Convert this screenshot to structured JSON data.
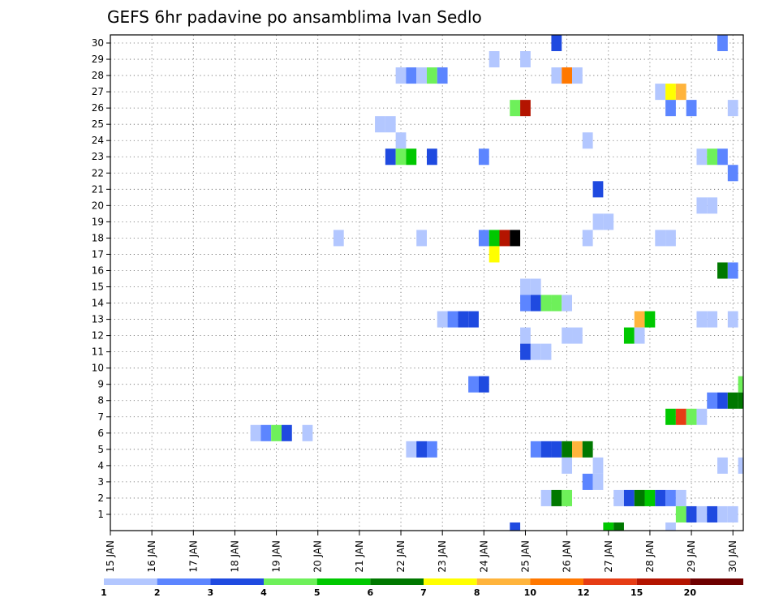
{
  "chart_data": {
    "type": "heatmap",
    "title": "GEFS 6hr padavine po ansamblima Ivan Sedlo",
    "xlabel": "",
    "ylabel": "",
    "x_unit": "6hr steps from 15 JAN 00Z",
    "x_range": [
      0,
      61
    ],
    "y_range": [
      0,
      30
    ],
    "x_ticks": [
      "15 JAN",
      "16 JAN",
      "17 JAN",
      "18 JAN",
      "19 JAN",
      "20 JAN",
      "21 JAN",
      "22 JAN",
      "23 JAN",
      "24 JAN",
      "25 JAN",
      "26 JAN",
      "27 JAN",
      "28 JAN",
      "29 JAN",
      "30 JAN"
    ],
    "y_ticks": [
      "1",
      "2",
      "3",
      "4",
      "5",
      "6",
      "7",
      "8",
      "9",
      "10",
      "11",
      "12",
      "13",
      "14",
      "15",
      "16",
      "17",
      "18",
      "19",
      "20",
      "21",
      "22",
      "23",
      "24",
      "25",
      "26",
      "27",
      "28",
      "29",
      "30"
    ],
    "grid": true,
    "legend": {
      "placement": "bottom",
      "colors": [
        "#b3c7ff",
        "#5c85ff",
        "#1f4ae0",
        "#6ef05a",
        "#00c800",
        "#007800",
        "#ffff00",
        "#ffb43c",
        "#ff7800",
        "#e63c14",
        "#b41400",
        "#6e0000"
      ],
      "labels": [
        "1",
        "2",
        "3",
        "4",
        "5",
        "6",
        "7",
        "8",
        "10",
        "12",
        "15",
        "20"
      ]
    },
    "cells": [
      {
        "m": 30,
        "s": [
          [
            43,
            3
          ],
          [
            59,
            2
          ]
        ]
      },
      {
        "m": 29,
        "s": [
          [
            37,
            1
          ],
          [
            40,
            1
          ]
        ]
      },
      {
        "m": 28,
        "s": [
          [
            28,
            1
          ],
          [
            29,
            2
          ],
          [
            30,
            1
          ],
          [
            31,
            4
          ],
          [
            32,
            2
          ],
          [
            43,
            1
          ],
          [
            44,
            9
          ],
          [
            45,
            1
          ]
        ]
      },
      {
        "m": 27,
        "s": [
          [
            53,
            1
          ],
          [
            54,
            7
          ],
          [
            55,
            8
          ]
        ]
      },
      {
        "m": 26,
        "s": [
          [
            39,
            4
          ],
          [
            40,
            11
          ],
          [
            54,
            2
          ],
          [
            56,
            2
          ],
          [
            60,
            1
          ]
        ]
      },
      {
        "m": 25,
        "s": [
          [
            26,
            1
          ],
          [
            27,
            1
          ]
        ]
      },
      {
        "m": 24,
        "s": [
          [
            28,
            1
          ],
          [
            46,
            1
          ]
        ]
      },
      {
        "m": 23,
        "s": [
          [
            27,
            3
          ],
          [
            28,
            4
          ],
          [
            29,
            5
          ],
          [
            31,
            3
          ],
          [
            36,
            2
          ],
          [
            57,
            1
          ],
          [
            58,
            4
          ],
          [
            59,
            2
          ]
        ]
      },
      {
        "m": 22,
        "s": [
          [
            60,
            2
          ]
        ]
      },
      {
        "m": 21,
        "s": [
          [
            47,
            3
          ]
        ]
      },
      {
        "m": 20,
        "s": [
          [
            57,
            1
          ],
          [
            58,
            1
          ]
        ]
      },
      {
        "m": 19,
        "s": [
          [
            47,
            1
          ],
          [
            48,
            1
          ]
        ]
      },
      {
        "m": 18,
        "s": [
          [
            22,
            1
          ],
          [
            30,
            1
          ],
          [
            36,
            2
          ],
          [
            37,
            5
          ],
          [
            38,
            11
          ],
          [
            39,
            15
          ],
          [
            46,
            1
          ],
          [
            53,
            1
          ],
          [
            54,
            1
          ]
        ]
      },
      {
        "m": 17,
        "s": [
          [
            37,
            7
          ]
        ]
      },
      {
        "m": 16,
        "s": [
          [
            59,
            6
          ],
          [
            60,
            2
          ]
        ]
      },
      {
        "m": 15,
        "s": [
          [
            40,
            1
          ],
          [
            41,
            1
          ]
        ]
      },
      {
        "m": 14,
        "s": [
          [
            40,
            2
          ],
          [
            41,
            3
          ],
          [
            42,
            4
          ],
          [
            43,
            4
          ],
          [
            44,
            1
          ]
        ]
      },
      {
        "m": 13,
        "s": [
          [
            32,
            1
          ],
          [
            33,
            2
          ],
          [
            34,
            3
          ],
          [
            35,
            3
          ],
          [
            51,
            8
          ],
          [
            52,
            5
          ],
          [
            57,
            1
          ],
          [
            58,
            1
          ],
          [
            60,
            1
          ]
        ]
      },
      {
        "m": 12,
        "s": [
          [
            40,
            1
          ],
          [
            44,
            1
          ],
          [
            45,
            1
          ],
          [
            50,
            5
          ],
          [
            51,
            1
          ]
        ]
      },
      {
        "m": 11,
        "s": [
          [
            40,
            3
          ],
          [
            41,
            1
          ],
          [
            42,
            1
          ]
        ]
      },
      {
        "m": 9,
        "s": [
          [
            35,
            2
          ],
          [
            36,
            3
          ],
          [
            61,
            4
          ]
        ]
      },
      {
        "m": 8,
        "s": [
          [
            58,
            2
          ],
          [
            59,
            3
          ],
          [
            60,
            6
          ],
          [
            61,
            6
          ]
        ]
      },
      {
        "m": 7,
        "s": [
          [
            54,
            5
          ],
          [
            55,
            10
          ],
          [
            56,
            4
          ],
          [
            57,
            1
          ]
        ]
      },
      {
        "m": 6,
        "s": [
          [
            14,
            1
          ],
          [
            15,
            2
          ],
          [
            16,
            4
          ],
          [
            17,
            3
          ],
          [
            19,
            1
          ]
        ]
      },
      {
        "m": 5,
        "s": [
          [
            29,
            1
          ],
          [
            30,
            3
          ],
          [
            31,
            2
          ],
          [
            41,
            2
          ],
          [
            42,
            3
          ],
          [
            43,
            3
          ],
          [
            44,
            6
          ],
          [
            45,
            8
          ],
          [
            46,
            6
          ]
        ]
      },
      {
        "m": 4,
        "s": [
          [
            44,
            1
          ],
          [
            47,
            1
          ],
          [
            59,
            1
          ],
          [
            61,
            1
          ]
        ]
      },
      {
        "m": 3,
        "s": [
          [
            46,
            2
          ],
          [
            47,
            1
          ]
        ]
      },
      {
        "m": 2,
        "s": [
          [
            42,
            1
          ],
          [
            43,
            6
          ],
          [
            44,
            4
          ],
          [
            49,
            1
          ],
          [
            50,
            3
          ],
          [
            51,
            6
          ],
          [
            52,
            5
          ],
          [
            53,
            3
          ],
          [
            54,
            2
          ],
          [
            55,
            1
          ]
        ]
      },
      {
        "m": 1,
        "s": [
          [
            55,
            4
          ],
          [
            56,
            3
          ],
          [
            57,
            1
          ],
          [
            58,
            3
          ],
          [
            59,
            1
          ],
          [
            60,
            1
          ]
        ]
      },
      {
        "m": 0,
        "s": [
          [
            39,
            3
          ],
          [
            48,
            5
          ],
          [
            49,
            6
          ],
          [
            54,
            1
          ]
        ]
      }
    ]
  }
}
